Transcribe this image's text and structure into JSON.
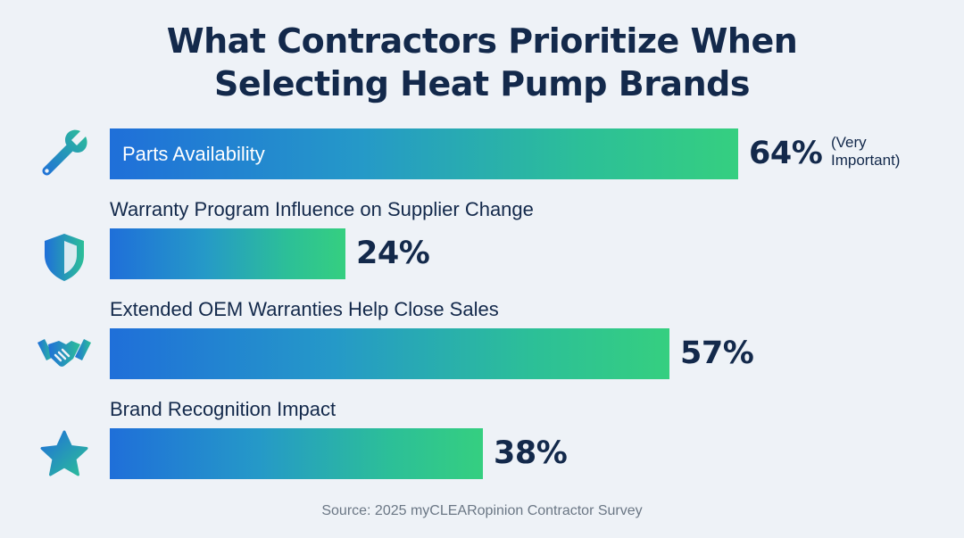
{
  "colors": {
    "title": "#13294b",
    "bar_start": "#1f6fd9",
    "bar_end": "#35cf80",
    "icon_blue": "#1f6fd9",
    "icon_green": "#2cbf98",
    "background": "#eef2f7"
  },
  "title_lines": [
    "What Contractors Prioritize When",
    "Selecting Heat Pump Brands"
  ],
  "chart_data": {
    "type": "bar",
    "orientation": "horizontal",
    "title": "What Contractors Prioritize When Selecting Heat Pump Brands",
    "categories": [
      "Parts Availability",
      "Warranty Program Influence on Supplier Change",
      "Extended OEM Warranties Help Close Sales",
      "Brand Recognition Impact"
    ],
    "values": [
      64,
      24,
      57,
      38
    ],
    "unit": "%",
    "value_labels": [
      "64%",
      "24%",
      "57%",
      "38%"
    ],
    "annotations": [
      "(Very Important)",
      "",
      "",
      ""
    ],
    "icons": [
      "wrench-icon",
      "shield-icon",
      "handshake-icon",
      "star-icon"
    ],
    "xlim": [
      0,
      100
    ],
    "grid": false,
    "legend": "none"
  },
  "note_lines": [
    "(Very",
    "Important)"
  ],
  "source": "Source: 2025 myCLEARopinion Contractor Survey"
}
